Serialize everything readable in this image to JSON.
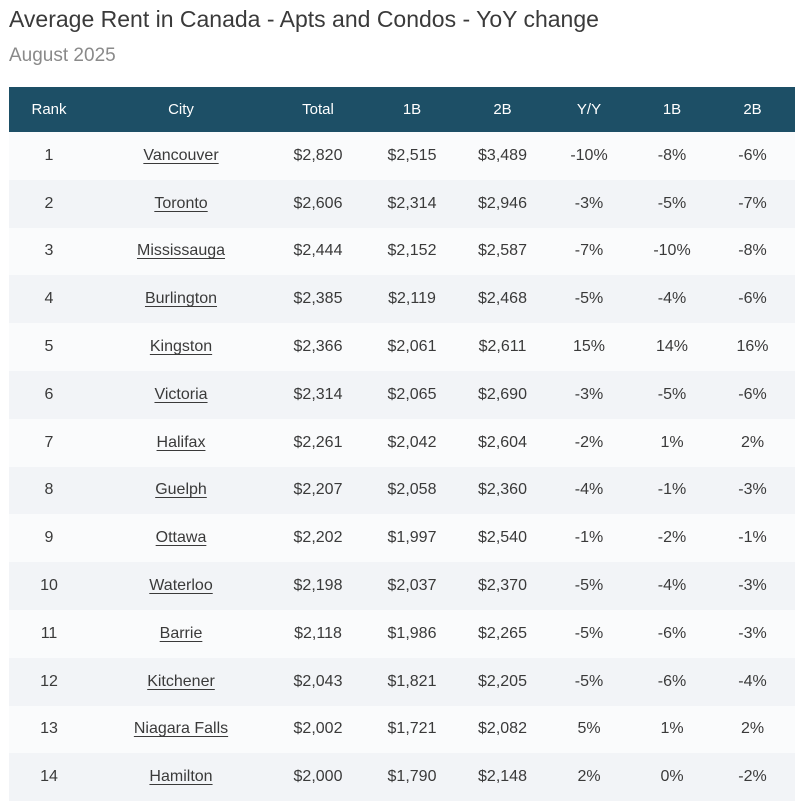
{
  "header": {
    "title": "Average Rent in Canada - Apts and Condos - YoY change",
    "subtitle": "August 2025"
  },
  "colors": {
    "header_bg": "#1d4f66",
    "header_text": "#ffffff",
    "row_alt": "#f2f4f7",
    "row_base": "#fafbfc"
  },
  "chart_data": {
    "type": "table",
    "title": "Average Rent in Canada - Apts and Condos - YoY change",
    "subtitle": "August 2025",
    "columns": [
      "Rank",
      "City",
      "Total",
      "1B",
      "2B",
      "Y/Y",
      "1B",
      "2B"
    ],
    "rows": [
      [
        "1",
        "Vancouver",
        "$2,820",
        "$2,515",
        "$3,489",
        "-10%",
        "-8%",
        "-6%"
      ],
      [
        "2",
        "Toronto",
        "$2,606",
        "$2,314",
        "$2,946",
        "-3%",
        "-5%",
        "-7%"
      ],
      [
        "3",
        "Mississauga",
        "$2,444",
        "$2,152",
        "$2,587",
        "-7%",
        "-10%",
        "-8%"
      ],
      [
        "4",
        "Burlington",
        "$2,385",
        "$2,119",
        "$2,468",
        "-5%",
        "-4%",
        "-6%"
      ],
      [
        "5",
        "Kingston",
        "$2,366",
        "$2,061",
        "$2,611",
        "15%",
        "14%",
        "16%"
      ],
      [
        "6",
        "Victoria",
        "$2,314",
        "$2,065",
        "$2,690",
        "-3%",
        "-5%",
        "-6%"
      ],
      [
        "7",
        "Halifax",
        "$2,261",
        "$2,042",
        "$2,604",
        "-2%",
        "1%",
        "2%"
      ],
      [
        "8",
        "Guelph",
        "$2,207",
        "$2,058",
        "$2,360",
        "-4%",
        "-1%",
        "-3%"
      ],
      [
        "9",
        "Ottawa",
        "$2,202",
        "$1,997",
        "$2,540",
        "-1%",
        "-2%",
        "-1%"
      ],
      [
        "10",
        "Waterloo",
        "$2,198",
        "$2,037",
        "$2,370",
        "-5%",
        "-4%",
        "-3%"
      ],
      [
        "11",
        "Barrie",
        "$2,118",
        "$1,986",
        "$2,265",
        "-5%",
        "-6%",
        "-3%"
      ],
      [
        "12",
        "Kitchener",
        "$2,043",
        "$1,821",
        "$2,205",
        "-5%",
        "-6%",
        "-4%"
      ],
      [
        "13",
        "Niagara Falls",
        "$2,002",
        "$1,721",
        "$2,082",
        "5%",
        "1%",
        "2%"
      ],
      [
        "14",
        "Hamilton",
        "$2,000",
        "$1,790",
        "$2,148",
        "2%",
        "0%",
        "-2%"
      ]
    ]
  }
}
